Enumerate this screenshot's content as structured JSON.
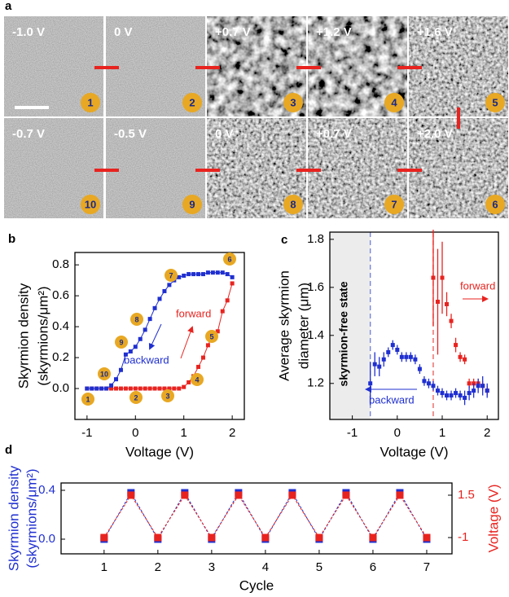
{
  "panel_a": {
    "label": "a",
    "tiles": [
      {
        "voltage": "-1.0 V",
        "number": "1"
      },
      {
        "voltage": "0 V",
        "number": "2"
      },
      {
        "voltage": "+0.7 V",
        "number": "3"
      },
      {
        "voltage": "+1.2 V",
        "number": "4"
      },
      {
        "voltage": "+1.6 V",
        "number": "5"
      },
      {
        "voltage": "-0.7 V",
        "number": "10"
      },
      {
        "voltage": "-0.5 V",
        "number": "9"
      },
      {
        "voltage": "0 V",
        "number": "8"
      },
      {
        "voltage": "+0.7 V",
        "number": "7"
      },
      {
        "voltage": "+2.0 V",
        "number": "6"
      }
    ]
  },
  "chart_data": [
    {
      "panel": "b",
      "type": "line",
      "xlabel": "Voltage (V)",
      "ylabel": [
        "Skyrmion density",
        "(skyrmions/μm²)"
      ],
      "xlim": [
        -1.25,
        2.25
      ],
      "ylim": [
        -0.2,
        0.88
      ],
      "xticks": [
        -1,
        0,
        1,
        2
      ],
      "yticks": [
        {
          "value": 0,
          "label": "0.0"
        },
        0.2,
        0.4,
        0.6,
        0.8
      ],
      "point_labels": [
        "1",
        "2",
        "3",
        "4",
        "5",
        "6",
        "7",
        "8",
        "9",
        "10"
      ],
      "series": [
        {
          "name": "forward",
          "color": "#e8231f",
          "x": [
            -1,
            -0.9,
            -0.8,
            -0.7,
            -0.6,
            -0.5,
            -0.4,
            -0.3,
            -0.2,
            -0.1,
            0,
            0.1,
            0.2,
            0.3,
            0.4,
            0.5,
            0.6,
            0.7,
            0.8,
            0.9,
            1,
            1.1,
            1.2,
            1.3,
            1.4,
            1.5,
            1.6,
            1.7,
            1.8,
            1.9,
            2
          ],
          "values": [
            0,
            0,
            0,
            0,
            0,
            0,
            0,
            0,
            0,
            0,
            0,
            0,
            0,
            0,
            0,
            0,
            0,
            0,
            0,
            0,
            0.01,
            0.04,
            0.08,
            0.14,
            0.2,
            0.28,
            0.35,
            0.37,
            0.5,
            0.57,
            0.68
          ]
        },
        {
          "name": "backward",
          "color": "#1f2fd0",
          "x": [
            -1,
            -0.9,
            -0.8,
            -0.7,
            -0.6,
            -0.5,
            -0.4,
            -0.3,
            -0.2,
            -0.1,
            0,
            0.1,
            0.2,
            0.3,
            0.4,
            0.5,
            0.6,
            0.7,
            0.8,
            0.9,
            1,
            1.1,
            1.2,
            1.3,
            1.4,
            1.5,
            1.6,
            1.7,
            1.8,
            1.9,
            2
          ],
          "values": [
            0,
            0,
            0,
            0,
            0,
            0.02,
            0.06,
            0.12,
            0.22,
            0.24,
            0.27,
            0.32,
            0.38,
            0.45,
            0.52,
            0.58,
            0.63,
            0.67,
            0.7,
            0.72,
            0.73,
            0.74,
            0.74,
            0.74,
            0.74,
            0.75,
            0.75,
            0.75,
            0.75,
            0.74,
            0.72
          ]
        }
      ]
    },
    {
      "panel": "c",
      "type": "scatter",
      "xlabel": "Voltage (V)",
      "ylabel": [
        "Average skyrmion",
        "diameter (μm)"
      ],
      "xlim": [
        -1.5,
        2.25
      ],
      "ylim": [
        1.05,
        1.83
      ],
      "xticks": [
        -1,
        0,
        1,
        2
      ],
      "yticks": [
        1.2,
        1.4,
        1.6,
        1.8
      ],
      "annotation": "skyrmion-free state",
      "shaded_until": -0.6,
      "vlines": [
        {
          "value": -0.6,
          "color": "#6f7fe0"
        },
        {
          "value": 0.8,
          "color": "#e85a55"
        }
      ],
      "series": [
        {
          "name": "forward",
          "color": "#e8231f",
          "x": [
            0.8,
            0.9,
            1,
            1.1,
            1.2,
            1.3,
            1.4,
            1.5,
            1.6,
            1.7,
            1.8,
            1.9,
            2
          ],
          "values": [
            1.64,
            1.54,
            1.64,
            1.53,
            1.46,
            1.36,
            1.31,
            1.3,
            1.2,
            1.2,
            1.2,
            1.19,
            1.17
          ],
          "errors": [
            0.2,
            0.22,
            0.15,
            0.05,
            0.03,
            0.03,
            0.02,
            0.02,
            0.02,
            0.02,
            0.02,
            0.02,
            0.02
          ]
        },
        {
          "name": "backward",
          "color": "#1f2fd0",
          "x": [
            -0.6,
            -0.5,
            -0.4,
            -0.3,
            -0.2,
            -0.1,
            0,
            0.1,
            0.2,
            0.3,
            0.4,
            0.5,
            0.6,
            0.7,
            0.8,
            0.9,
            1,
            1.1,
            1.2,
            1.3,
            1.4,
            1.5,
            1.6,
            1.7,
            1.8,
            1.9,
            2
          ],
          "values": [
            1.2,
            1.28,
            1.27,
            1.3,
            1.33,
            1.36,
            1.34,
            1.31,
            1.31,
            1.31,
            1.3,
            1.26,
            1.21,
            1.2,
            1.19,
            1.17,
            1.16,
            1.15,
            1.15,
            1.16,
            1.15,
            1.14,
            1.16,
            1.17,
            1.19,
            1.19,
            1.17
          ],
          "errors": [
            0.09,
            0.05,
            0.04,
            0.03,
            0.02,
            0.02,
            0.02,
            0.02,
            0.02,
            0.02,
            0.02,
            0.02,
            0.02,
            0.02,
            0.02,
            0.02,
            0.02,
            0.02,
            0.02,
            0.02,
            0.02,
            0.03,
            0.03,
            0.03,
            0.03,
            0.04,
            0.03
          ]
        }
      ]
    },
    {
      "panel": "d",
      "type": "line",
      "xlabel": "Cycle",
      "ylabel": [
        "Skyrmion density",
        "(skyrmions/μm²)"
      ],
      "y2label": "Voltage (V)",
      "xlim": [
        0.2,
        7.47
      ],
      "ylim": [
        -0.12,
        0.46
      ],
      "y2lim": [
        -1.96,
        2.22
      ],
      "xticks": [
        1,
        2,
        3,
        4,
        5,
        6,
        7
      ],
      "yticks": [
        {
          "value": 0,
          "label": "0.0"
        },
        0.4
      ],
      "y2ticks": [
        -1,
        1.5
      ],
      "series": [
        {
          "color": "#1f2fd0",
          "x": [
            1,
            1.5,
            2,
            2.5,
            3,
            3.5,
            4,
            4.5,
            5,
            5.5,
            6,
            6.5,
            7
          ],
          "values": [
            0,
            0.38,
            0,
            0.38,
            0,
            0.38,
            0,
            0.38,
            0,
            0.38,
            0,
            0.38,
            0
          ]
        },
        {
          "color": "#e8231f",
          "axis": "y2",
          "x": [
            1,
            1.5,
            2,
            2.5,
            3,
            3.5,
            4,
            4.5,
            5,
            5.5,
            6,
            6.5,
            7
          ],
          "values": [
            -1,
            1.5,
            -1,
            1.5,
            -1,
            1.5,
            -1,
            1.5,
            -1,
            1.5,
            -1,
            1.5,
            -1
          ]
        }
      ]
    }
  ]
}
